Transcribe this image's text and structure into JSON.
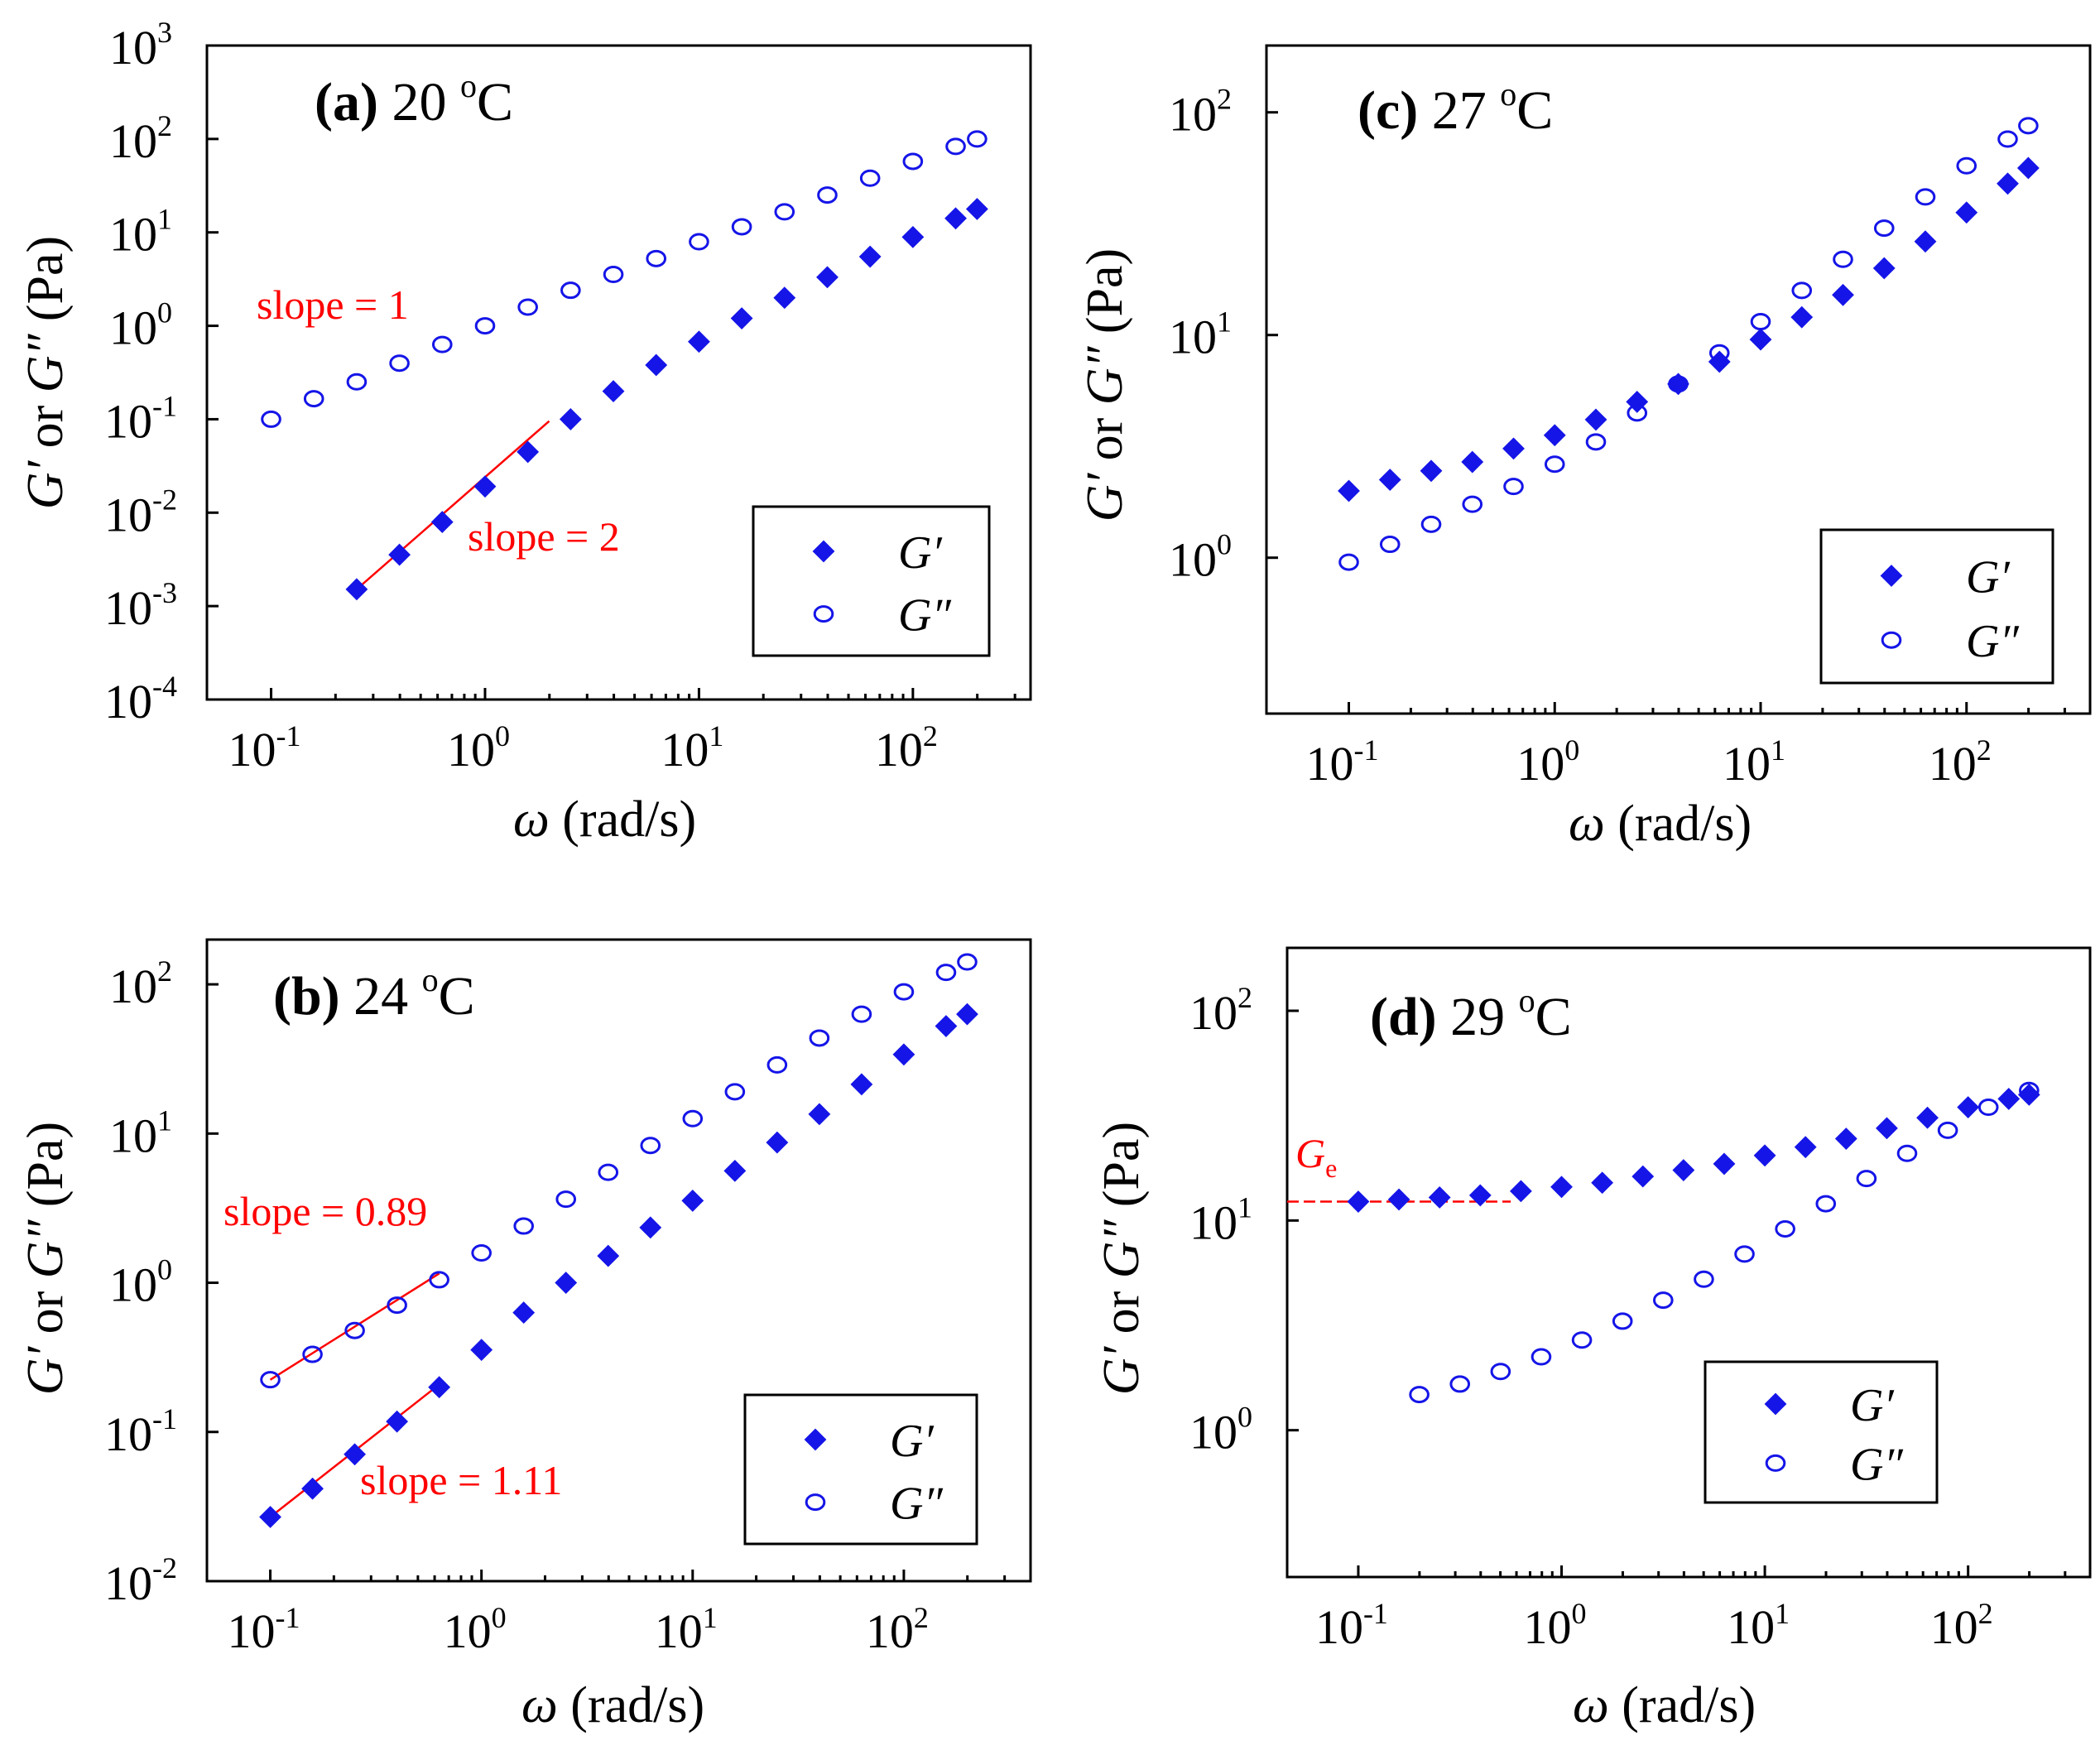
{
  "chart_data": [
    {
      "id": "a",
      "type": "scatter",
      "title": "(a) 20 °C",
      "panel_letter": "(a)",
      "temperature": "20",
      "degree_symbol": "o",
      "temperature_unit": "C",
      "xlabel_symbol": "ω",
      "xlabel_unit": "(rad/s)",
      "ylabel_g1": "G′",
      "ylabel_or": " or ",
      "ylabel_g2": "G″",
      "ylabel_unit": " (Pa)",
      "x_scale": "log",
      "y_scale": "log",
      "xlim_exp": [
        -1.3,
        2.55
      ],
      "ylim_exp": [
        -4,
        3
      ],
      "x_ticks": [
        {
          "base": "10",
          "exp": "-1",
          "value": -1
        },
        {
          "base": "10",
          "exp": "0",
          "value": 0
        },
        {
          "base": "10",
          "exp": "1",
          "value": 1
        },
        {
          "base": "10",
          "exp": "2",
          "value": 2
        }
      ],
      "y_ticks": [
        {
          "base": "10",
          "exp": "-4",
          "value": -4
        },
        {
          "base": "10",
          "exp": "-3",
          "value": -3
        },
        {
          "base": "10",
          "exp": "-2",
          "value": -2
        },
        {
          "base": "10",
          "exp": "-1",
          "value": -1
        },
        {
          "base": "10",
          "exp": "0",
          "value": 0
        },
        {
          "base": "10",
          "exp": "1",
          "value": 1
        },
        {
          "base": "10",
          "exp": "2",
          "value": 2
        },
        {
          "base": "10",
          "exp": "3",
          "value": 3
        }
      ],
      "series": [
        {
          "name": "G′",
          "marker": "filled-diamond",
          "x_log_range": [
            -0.6,
            2.3
          ],
          "y_log_points": [
            [
              -0.6,
              -2.82
            ],
            [
              -0.4,
              -2.45
            ],
            [
              -0.2,
              -2.1
            ],
            [
              0,
              -1.72
            ],
            [
              0.2,
              -1.35
            ],
            [
              0.4,
              -1.0
            ],
            [
              0.6,
              -0.7
            ],
            [
              0.8,
              -0.42
            ],
            [
              1.0,
              -0.17
            ],
            [
              1.2,
              0.08
            ],
            [
              1.4,
              0.3
            ],
            [
              1.6,
              0.52
            ],
            [
              1.8,
              0.74
            ],
            [
              2.0,
              0.95
            ],
            [
              2.2,
              1.15
            ],
            [
              2.3,
              1.25
            ]
          ]
        },
        {
          "name": "G″",
          "marker": "open-diamond",
          "x_log_range": [
            -1,
            2.3
          ],
          "y_log_points": [
            [
              -1,
              -1.0
            ],
            [
              -0.8,
              -0.78
            ],
            [
              -0.6,
              -0.6
            ],
            [
              -0.4,
              -0.4
            ],
            [
              -0.2,
              -0.2
            ],
            [
              0,
              0.0
            ],
            [
              0.2,
              0.2
            ],
            [
              0.4,
              0.38
            ],
            [
              0.6,
              0.55
            ],
            [
              0.8,
              0.72
            ],
            [
              1.0,
              0.9
            ],
            [
              1.2,
              1.06
            ],
            [
              1.4,
              1.22
            ],
            [
              1.6,
              1.4
            ],
            [
              1.8,
              1.58
            ],
            [
              2.0,
              1.76
            ],
            [
              2.2,
              1.92
            ],
            [
              2.3,
              2.0
            ]
          ]
        }
      ],
      "legend": {
        "entries": [
          "G′",
          "G″"
        ],
        "position": "bottom-right"
      },
      "annotations": [
        "slope = 1",
        "slope = 2"
      ],
      "fits": [
        {
          "x_log_range": [
            -0.6,
            0.3
          ],
          "slope": 2,
          "y0_log": -2.82
        }
      ]
    },
    {
      "id": "c",
      "type": "scatter",
      "title": "(c) 27°C",
      "panel_letter": "(c)",
      "temperature": "27",
      "degree_symbol": "o",
      "temperature_unit": "C",
      "xlabel_symbol": "ω",
      "xlabel_unit": "(rad/s)",
      "ylabel_g1": "G′",
      "ylabel_or": " or ",
      "ylabel_g2": "G″",
      "ylabel_unit": " (Pa)",
      "x_scale": "log",
      "y_scale": "log",
      "xlim_exp": [
        -1.4,
        2.6
      ],
      "ylim_exp": [
        -0.7,
        2.3
      ],
      "x_ticks": [
        {
          "base": "10",
          "exp": "-1",
          "value": -1
        },
        {
          "base": "10",
          "exp": "0",
          "value": 0
        },
        {
          "base": "10",
          "exp": "1",
          "value": 1
        },
        {
          "base": "10",
          "exp": "2",
          "value": 2
        }
      ],
      "y_ticks": [
        {
          "base": "10",
          "exp": "0",
          "value": 0
        },
        {
          "base": "10",
          "exp": "1",
          "value": 1
        },
        {
          "base": "10",
          "exp": "2",
          "value": 2
        }
      ],
      "series": [
        {
          "name": "G′",
          "marker": "filled-diamond",
          "y_log_points": [
            [
              -1,
              0.3
            ],
            [
              -0.8,
              0.35
            ],
            [
              -0.6,
              0.39
            ],
            [
              -0.4,
              0.43
            ],
            [
              -0.2,
              0.49
            ],
            [
              0,
              0.55
            ],
            [
              0.2,
              0.62
            ],
            [
              0.4,
              0.7
            ],
            [
              0.6,
              0.78
            ],
            [
              0.8,
              0.88
            ],
            [
              1.0,
              0.98
            ],
            [
              1.2,
              1.08
            ],
            [
              1.4,
              1.18
            ],
            [
              1.6,
              1.3
            ],
            [
              1.8,
              1.42
            ],
            [
              2.0,
              1.55
            ],
            [
              2.2,
              1.68
            ],
            [
              2.3,
              1.75
            ]
          ]
        },
        {
          "name": "G″",
          "marker": "open-diamond",
          "y_log_points": [
            [
              -1,
              -0.02
            ],
            [
              -0.8,
              0.06
            ],
            [
              -0.6,
              0.15
            ],
            [
              -0.4,
              0.24
            ],
            [
              -0.2,
              0.32
            ],
            [
              0,
              0.42
            ],
            [
              0.2,
              0.52
            ],
            [
              0.4,
              0.65
            ],
            [
              0.6,
              0.78
            ],
            [
              0.8,
              0.92
            ],
            [
              1.0,
              1.06
            ],
            [
              1.2,
              1.2
            ],
            [
              1.4,
              1.34
            ],
            [
              1.6,
              1.48
            ],
            [
              1.8,
              1.62
            ],
            [
              2.0,
              1.76
            ],
            [
              2.2,
              1.88
            ],
            [
              2.3,
              1.94
            ]
          ]
        }
      ],
      "legend": {
        "entries": [
          "G′",
          "G″"
        ],
        "position": "bottom-right"
      },
      "annotations": [],
      "fits": []
    },
    {
      "id": "b",
      "type": "scatter",
      "title": "(b) 24 °C",
      "panel_letter": "(b)",
      "temperature": "24",
      "degree_symbol": "o",
      "temperature_unit": "C",
      "xlabel_symbol": "ω",
      "xlabel_unit": "(rad/s)",
      "ylabel_g1": "G′",
      "ylabel_or": " or ",
      "ylabel_g2": "G″",
      "ylabel_unit": " (Pa)",
      "x_scale": "log",
      "y_scale": "log",
      "xlim_exp": [
        -1.3,
        2.6
      ],
      "ylim_exp": [
        -2,
        2.3
      ],
      "x_ticks": [
        {
          "base": "10",
          "exp": "-1",
          "value": -1
        },
        {
          "base": "10",
          "exp": "0",
          "value": 0
        },
        {
          "base": "10",
          "exp": "1",
          "value": 1
        },
        {
          "base": "10",
          "exp": "2",
          "value": 2
        }
      ],
      "y_ticks": [
        {
          "base": "10",
          "exp": "-2",
          "value": -2
        },
        {
          "base": "10",
          "exp": "-1",
          "value": -1
        },
        {
          "base": "10",
          "exp": "0",
          "value": 0
        },
        {
          "base": "10",
          "exp": "1",
          "value": 1
        },
        {
          "base": "10",
          "exp": "2",
          "value": 2
        }
      ],
      "series": [
        {
          "name": "G′",
          "marker": "filled-diamond",
          "y_log_points": [
            [
              -1,
              -1.57
            ],
            [
              -0.8,
              -1.38
            ],
            [
              -0.6,
              -1.15
            ],
            [
              -0.4,
              -0.93
            ],
            [
              -0.2,
              -0.7
            ],
            [
              0,
              -0.45
            ],
            [
              0.2,
              -0.2
            ],
            [
              0.4,
              0.0
            ],
            [
              0.6,
              0.18
            ],
            [
              0.8,
              0.37
            ],
            [
              1.0,
              0.55
            ],
            [
              1.2,
              0.75
            ],
            [
              1.4,
              0.94
            ],
            [
              1.6,
              1.13
            ],
            [
              1.8,
              1.33
            ],
            [
              2.0,
              1.53
            ],
            [
              2.2,
              1.72
            ],
            [
              2.3,
              1.8
            ]
          ]
        },
        {
          "name": "G″",
          "marker": "open-diamond",
          "y_log_points": [
            [
              -1,
              -0.65
            ],
            [
              -0.8,
              -0.48
            ],
            [
              -0.6,
              -0.32
            ],
            [
              -0.4,
              -0.15
            ],
            [
              -0.2,
              0.02
            ],
            [
              0,
              0.2
            ],
            [
              0.2,
              0.38
            ],
            [
              0.4,
              0.56
            ],
            [
              0.6,
              0.74
            ],
            [
              0.8,
              0.92
            ],
            [
              1.0,
              1.1
            ],
            [
              1.2,
              1.28
            ],
            [
              1.4,
              1.46
            ],
            [
              1.6,
              1.64
            ],
            [
              1.8,
              1.8
            ],
            [
              2.0,
              1.95
            ],
            [
              2.2,
              2.08
            ],
            [
              2.3,
              2.15
            ]
          ]
        }
      ],
      "legend": {
        "entries": [
          "G′",
          "G″"
        ],
        "position": "bottom-right"
      },
      "annotations": [
        "slope = 0.89",
        "slope = 1.11"
      ],
      "fits": [
        {
          "x_log_range": [
            -1,
            -0.2
          ],
          "slope": 0.89,
          "y0_log": -0.65
        },
        {
          "x_log_range": [
            -1,
            -0.2
          ],
          "slope": 1.11,
          "y0_log": -1.57
        }
      ]
    },
    {
      "id": "d",
      "type": "scatter",
      "title": "(d) 29 °C",
      "panel_letter": "(d)",
      "temperature": "29",
      "degree_symbol": "o",
      "temperature_unit": "C",
      "xlabel_symbol": "ω",
      "xlabel_unit": "(rad/s)",
      "ylabel_g1": "G′",
      "ylabel_or": " or ",
      "ylabel_g2": "G″",
      "ylabel_unit": " (Pa)",
      "x_scale": "log",
      "y_scale": "log",
      "xlim_exp": [
        -1.35,
        2.6
      ],
      "ylim_exp": [
        -0.7,
        2.3
      ],
      "x_ticks": [
        {
          "base": "10",
          "exp": "-1",
          "value": -1
        },
        {
          "base": "10",
          "exp": "0",
          "value": 0
        },
        {
          "base": "10",
          "exp": "1",
          "value": 1
        },
        {
          "base": "10",
          "exp": "2",
          "value": 2
        }
      ],
      "y_ticks": [
        {
          "base": "10",
          "exp": "0",
          "value": 0
        },
        {
          "base": "10",
          "exp": "1",
          "value": 1
        },
        {
          "base": "10",
          "exp": "2",
          "value": 2
        }
      ],
      "series": [
        {
          "name": "G′",
          "marker": "filled-diamond",
          "y_log_points": [
            [
              -1,
              1.09
            ],
            [
              -0.8,
              1.1
            ],
            [
              -0.6,
              1.11
            ],
            [
              -0.4,
              1.12
            ],
            [
              -0.2,
              1.14
            ],
            [
              0,
              1.16
            ],
            [
              0.2,
              1.18
            ],
            [
              0.4,
              1.21
            ],
            [
              0.6,
              1.24
            ],
            [
              0.8,
              1.27
            ],
            [
              1.0,
              1.31
            ],
            [
              1.2,
              1.35
            ],
            [
              1.4,
              1.39
            ],
            [
              1.6,
              1.44
            ],
            [
              1.8,
              1.49
            ],
            [
              2.0,
              1.54
            ],
            [
              2.2,
              1.58
            ],
            [
              2.3,
              1.6
            ]
          ]
        },
        {
          "name": "G″",
          "marker": "open-diamond",
          "y_log_points": [
            [
              -0.7,
              0.17
            ],
            [
              -0.5,
              0.22
            ],
            [
              -0.3,
              0.28
            ],
            [
              -0.1,
              0.35
            ],
            [
              0.1,
              0.43
            ],
            [
              0.3,
              0.52
            ],
            [
              0.5,
              0.62
            ],
            [
              0.7,
              0.72
            ],
            [
              0.9,
              0.84
            ],
            [
              1.1,
              0.96
            ],
            [
              1.3,
              1.08
            ],
            [
              1.5,
              1.2
            ],
            [
              1.7,
              1.32
            ],
            [
              1.9,
              1.43
            ],
            [
              2.1,
              1.54
            ],
            [
              2.3,
              1.62
            ]
          ]
        }
      ],
      "legend": {
        "entries": [
          "G′",
          "G″"
        ],
        "position": "bottom-right"
      },
      "annotations": [
        "G"
      ],
      "annotation_subscript": "e",
      "fits": [
        {
          "x_log_range": [
            -1.35,
            -0.25
          ],
          "slope": 0,
          "y0_log": 1.09
        }
      ]
    }
  ]
}
